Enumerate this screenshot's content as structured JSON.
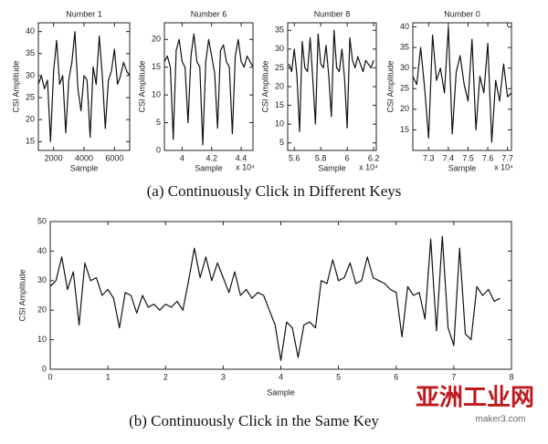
{
  "chart_data": [
    {
      "type": "line",
      "title": "Number 1",
      "x_label": "Sample",
      "y_label": "CSI Amplitude",
      "x": [
        1000,
        1200,
        1400,
        1600,
        1800,
        2000,
        2200,
        2400,
        2600,
        2800,
        3000,
        3200,
        3400,
        3600,
        3800,
        4000,
        4200,
        4400,
        4600,
        4800,
        5000,
        5200,
        5400,
        5600,
        5800,
        6000,
        6200,
        6400,
        6600,
        6800,
        7000
      ],
      "values": [
        28,
        30,
        27,
        29,
        15,
        31,
        38,
        28,
        30,
        17,
        29,
        33,
        40,
        27,
        22,
        30,
        29,
        16,
        32,
        28,
        39,
        30,
        18,
        29,
        31,
        36,
        28,
        30,
        33,
        31,
        30
      ],
      "color": "#111111",
      "xlim": [
        1000,
        7000
      ],
      "xticks": [
        2000,
        4000,
        6000
      ],
      "ylim": [
        13,
        42
      ],
      "yticks": [
        15,
        20,
        25,
        30,
        35,
        40
      ]
    },
    {
      "type": "line",
      "title": "Number 6",
      "x_label": "Sample",
      "y_label": "CSI Amplitude",
      "x_multiplier": "x 10⁴",
      "x": [
        3.88,
        3.9,
        3.92,
        3.94,
        3.96,
        3.98,
        4.0,
        4.02,
        4.04,
        4.06,
        4.08,
        4.1,
        4.12,
        4.14,
        4.16,
        4.18,
        4.2,
        4.22,
        4.24,
        4.26,
        4.28,
        4.3,
        4.32,
        4.34,
        4.36,
        4.38,
        4.4,
        4.42,
        4.44,
        4.46,
        4.48
      ],
      "values": [
        16,
        17,
        15,
        2,
        18,
        20,
        16,
        15,
        5,
        17,
        21,
        16,
        15,
        1,
        16,
        20,
        17,
        14,
        4,
        18,
        19,
        16,
        15,
        3,
        17,
        20,
        16,
        15,
        17,
        16,
        15
      ],
      "color": "#111111",
      "xlim": [
        3.88,
        4.48
      ],
      "xticks": [
        4,
        4.2,
        4.4
      ],
      "ylim": [
        0,
        23
      ],
      "yticks": [
        0,
        5,
        10,
        15,
        20
      ]
    },
    {
      "type": "line",
      "title": "Number 8",
      "x_label": "Sample",
      "y_label": "CSI Amplitude",
      "x_multiplier": "x 10⁴",
      "x": [
        5.56,
        5.58,
        5.6,
        5.62,
        5.64,
        5.66,
        5.68,
        5.7,
        5.72,
        5.74,
        5.76,
        5.78,
        5.8,
        5.82,
        5.84,
        5.86,
        5.88,
        5.9,
        5.92,
        5.94,
        5.96,
        5.98,
        6.0,
        6.02,
        6.04,
        6.06,
        6.08,
        6.1,
        6.12,
        6.14,
        6.16,
        6.18,
        6.2
      ],
      "values": [
        26,
        24,
        30,
        23,
        8,
        32,
        25,
        24,
        33,
        22,
        10,
        34,
        26,
        25,
        31,
        23,
        12,
        35,
        25,
        24,
        30,
        22,
        9,
        33,
        27,
        25,
        28,
        26,
        24,
        27,
        26,
        25,
        27
      ],
      "color": "#111111",
      "xlim": [
        5.55,
        6.22
      ],
      "xticks": [
        5.6,
        5.8,
        6,
        6.2
      ],
      "ylim": [
        3,
        37
      ],
      "yticks": [
        5,
        10,
        15,
        20,
        25,
        30,
        35
      ]
    },
    {
      "type": "line",
      "title": "Number 0",
      "x_label": "Sample",
      "y_label": "CSI Amplitude",
      "x_multiplier": "x 10⁴",
      "x": [
        7.22,
        7.24,
        7.26,
        7.28,
        7.3,
        7.32,
        7.34,
        7.36,
        7.38,
        7.4,
        7.42,
        7.44,
        7.46,
        7.48,
        7.5,
        7.52,
        7.54,
        7.56,
        7.58,
        7.6,
        7.62,
        7.64,
        7.66,
        7.68,
        7.7,
        7.72
      ],
      "values": [
        28,
        26,
        35,
        25,
        13,
        38,
        27,
        30,
        24,
        40,
        14,
        29,
        33,
        26,
        22,
        37,
        15,
        28,
        24,
        36,
        12,
        27,
        22,
        31,
        23,
        24
      ],
      "color": "#111111",
      "xlim": [
        7.22,
        7.72
      ],
      "xticks": [
        7.3,
        7.4,
        7.5,
        7.6,
        7.7
      ],
      "ylim": [
        10,
        41
      ],
      "yticks": [
        15,
        20,
        25,
        30,
        35,
        40
      ]
    },
    {
      "type": "line",
      "x_label": "Sample",
      "y_label": "CSI Amplitude",
      "x": [
        0,
        0.1,
        0.2,
        0.3,
        0.4,
        0.5,
        0.6,
        0.7,
        0.8,
        0.9,
        1,
        1.1,
        1.2,
        1.3,
        1.4,
        1.5,
        1.6,
        1.7,
        1.8,
        1.9,
        2,
        2.1,
        2.2,
        2.3,
        2.4,
        2.5,
        2.6,
        2.7,
        2.8,
        2.9,
        3,
        3.1,
        3.2,
        3.3,
        3.4,
        3.5,
        3.6,
        3.7,
        3.8,
        3.9,
        4,
        4.1,
        4.2,
        4.3,
        4.4,
        4.5,
        4.6,
        4.7,
        4.8,
        4.9,
        5,
        5.1,
        5.2,
        5.3,
        5.4,
        5.5,
        5.6,
        5.7,
        5.8,
        5.9,
        6,
        6.1,
        6.2,
        6.3,
        6.4,
        6.5,
        6.6,
        6.7,
        6.8,
        6.9,
        7,
        7.1,
        7.2,
        7.3,
        7.4,
        7.5,
        7.6,
        7.7,
        7.8
      ],
      "values": [
        28,
        30,
        38,
        27,
        33,
        15,
        36,
        30,
        31,
        25,
        27,
        24,
        14,
        26,
        25,
        19,
        25,
        21,
        22,
        20,
        22,
        21,
        23,
        20,
        30,
        41,
        31,
        38,
        30,
        36,
        31,
        26,
        33,
        25,
        27,
        24,
        26,
        25,
        20,
        15,
        3,
        16,
        14,
        4,
        15,
        16,
        14,
        30,
        29,
        37,
        30,
        31,
        36,
        29,
        30,
        38,
        31,
        30,
        29,
        27,
        26,
        11,
        28,
        25,
        26,
        17,
        44,
        13,
        45,
        14,
        8,
        41,
        12,
        10,
        28,
        25,
        27,
        23,
        24
      ],
      "color": "#111111",
      "xlim": [
        0,
        8
      ],
      "xticks": [
        0,
        1,
        2,
        3,
        4,
        5,
        6,
        7,
        8
      ],
      "ylim": [
        0,
        50
      ],
      "yticks": [
        0,
        10,
        20,
        30,
        40,
        50
      ]
    }
  ],
  "captions": [
    "(a) Continuously Click in Different Keys",
    "(b) Continuously Click in the Same Key"
  ],
  "watermark": {
    "brand": "亚洲工业网",
    "site": "maker3.com"
  }
}
